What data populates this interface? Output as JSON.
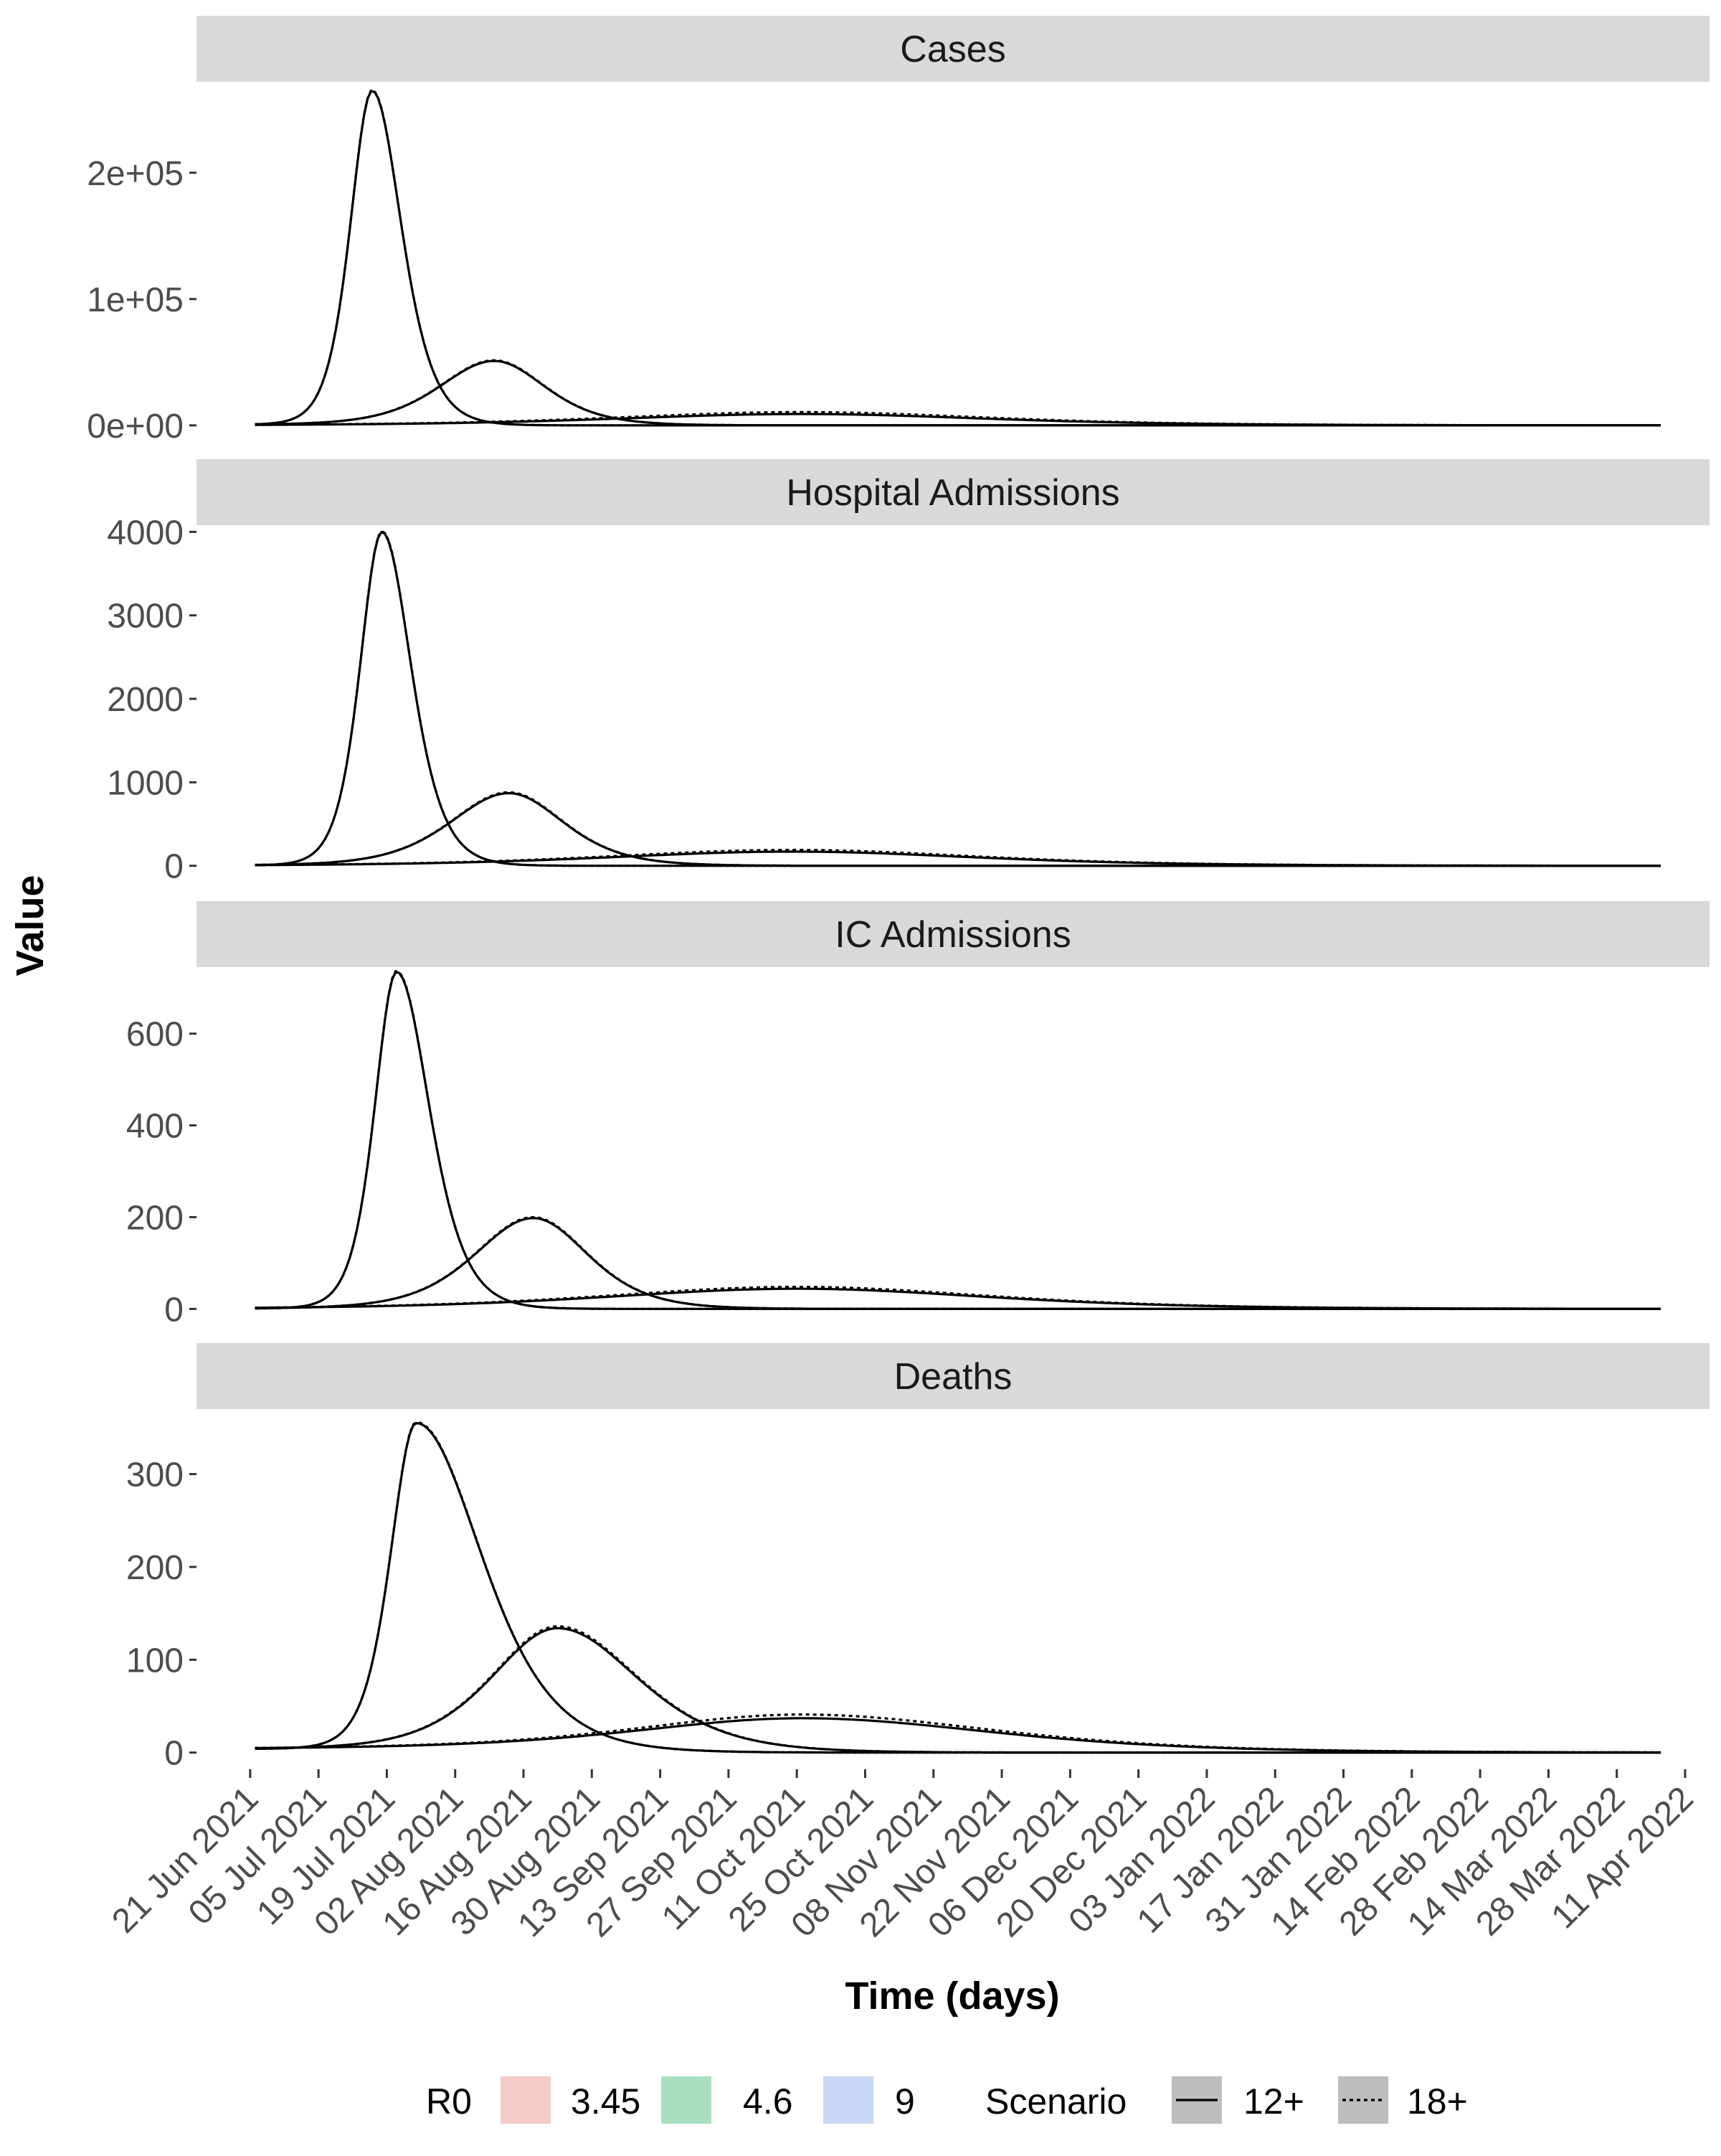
{
  "chart_data": {
    "type": "line",
    "xlabel": "Time (days)",
    "ylabel": "Value",
    "x_axis": {
      "type": "date",
      "range": [
        "2021-06-10",
        "2022-04-16"
      ],
      "ticks": [
        "2021-06-21",
        "2021-07-05",
        "2021-07-19",
        "2021-08-02",
        "2021-08-16",
        "2021-08-30",
        "2021-09-13",
        "2021-09-27",
        "2021-10-11",
        "2021-10-25",
        "2021-11-08",
        "2021-11-22",
        "2021-12-06",
        "2021-12-20",
        "2022-01-03",
        "2022-01-17",
        "2022-01-31",
        "2022-02-14",
        "2022-02-28",
        "2022-03-14",
        "2022-03-28",
        "2022-04-11"
      ],
      "tick_labels": [
        "21 Jun 2021",
        "05 Jul 2021",
        "19 Jul 2021",
        "02 Aug 2021",
        "16 Aug 2021",
        "30 Aug 2021",
        "13 Sep 2021",
        "27 Sep 2021",
        "11 Oct 2021",
        "25 Oct 2021",
        "08 Nov 2021",
        "22 Nov 2021",
        "06 Dec 2021",
        "20 Dec 2021",
        "03 Jan 2022",
        "17 Jan 2022",
        "31 Jan 2022",
        "14 Feb 2022",
        "28 Feb 2022",
        "14 Mar 2022",
        "28 Mar 2022",
        "11 Apr 2022"
      ]
    },
    "series_date_range": [
      "2021-06-22",
      "2022-04-06"
    ],
    "legend": {
      "position": "bottom",
      "groups": [
        {
          "title": "R0",
          "kind": "fill",
          "items": [
            {
              "label": "3.45",
              "color": "#f4cbc7"
            },
            {
              "label": "4.6",
              "color": "#a9dfbf"
            },
            {
              "label": "9",
              "color": "#c7d7f4"
            }
          ]
        },
        {
          "title": "Scenario",
          "kind": "linetype",
          "items": [
            {
              "label": "12+",
              "dash": "solid"
            },
            {
              "label": "18+",
              "dash": "dotted"
            }
          ]
        }
      ]
    },
    "panels": [
      {
        "strip": "Cases",
        "ylim": [
          -12000,
          272000
        ],
        "y_ticks": [
          0,
          100000,
          200000
        ],
        "y_tick_labels": [
          "0e+00",
          "1e+05",
          "2e+05"
        ],
        "series": [
          {
            "r0": "9",
            "scenario": "12+",
            "peak_date": "2021-07-16",
            "peak": 265000,
            "rise_days": 6,
            "fall_days": 8,
            "start": 500,
            "end": 0
          },
          {
            "r0": "9",
            "scenario": "18+",
            "peak_date": "2021-07-16",
            "peak": 265500,
            "rise_days": 6,
            "fall_days": 8,
            "start": 500,
            "end": 0
          },
          {
            "r0": "4.6",
            "scenario": "12+",
            "peak_date": "2021-08-10",
            "peak": 51000,
            "rise_days": 15,
            "fall_days": 14,
            "start": 500,
            "end": 0
          },
          {
            "r0": "4.6",
            "scenario": "18+",
            "peak_date": "2021-08-10",
            "peak": 51500,
            "rise_days": 15,
            "fall_days": 14,
            "start": 500,
            "end": 0
          },
          {
            "r0": "3.45",
            "scenario": "12+",
            "peak_date": "2021-10-12",
            "peak": 9000,
            "rise_days": 50,
            "fall_days": 50,
            "start": 0,
            "end": 0
          },
          {
            "r0": "3.45",
            "scenario": "18+",
            "peak_date": "2021-10-12",
            "peak": 10500,
            "rise_days": 50,
            "fall_days": 50,
            "start": 0,
            "end": 0
          }
        ]
      },
      {
        "strip": "Hospital Admissions",
        "ylim": [
          -200,
          4080
        ],
        "y_ticks": [
          0,
          1000,
          2000,
          3000,
          4000
        ],
        "y_tick_labels": [
          "0",
          "1000",
          "2000",
          "3000",
          "4000"
        ],
        "series": [
          {
            "r0": "9",
            "scenario": "12+",
            "peak_date": "2021-07-18",
            "peak": 4000,
            "rise_days": 6,
            "fall_days": 8,
            "start": 5,
            "end": 0
          },
          {
            "r0": "9",
            "scenario": "18+",
            "peak_date": "2021-07-18",
            "peak": 4010,
            "rise_days": 6,
            "fall_days": 8,
            "start": 5,
            "end": 0
          },
          {
            "r0": "4.6",
            "scenario": "12+",
            "peak_date": "2021-08-13",
            "peak": 870,
            "rise_days": 16,
            "fall_days": 15,
            "start": 5,
            "end": 0
          },
          {
            "r0": "4.6",
            "scenario": "18+",
            "peak_date": "2021-08-13",
            "peak": 880,
            "rise_days": 16,
            "fall_days": 15,
            "start": 5,
            "end": 0
          },
          {
            "r0": "3.45",
            "scenario": "12+",
            "peak_date": "2021-10-10",
            "peak": 170,
            "rise_days": 50,
            "fall_days": 50,
            "start": 0,
            "end": 0
          },
          {
            "r0": "3.45",
            "scenario": "18+",
            "peak_date": "2021-10-10",
            "peak": 190,
            "rise_days": 50,
            "fall_days": 50,
            "start": 0,
            "end": 0
          }
        ]
      },
      {
        "strip": "IC Admissions",
        "ylim": [
          -37,
          745
        ],
        "y_ticks": [
          0,
          200,
          400,
          600
        ],
        "y_tick_labels": [
          "0",
          "200",
          "400",
          "600"
        ],
        "series": [
          {
            "r0": "9",
            "scenario": "12+",
            "peak_date": "2021-07-21",
            "peak": 735,
            "rise_days": 6,
            "fall_days": 9,
            "start": 1,
            "end": 0
          },
          {
            "r0": "9",
            "scenario": "18+",
            "peak_date": "2021-07-21",
            "peak": 737,
            "rise_days": 6,
            "fall_days": 9,
            "start": 1,
            "end": 0
          },
          {
            "r0": "4.6",
            "scenario": "12+",
            "peak_date": "2021-08-18",
            "peak": 198,
            "rise_days": 16,
            "fall_days": 15,
            "start": 1,
            "end": 0
          },
          {
            "r0": "4.6",
            "scenario": "18+",
            "peak_date": "2021-08-18",
            "peak": 200,
            "rise_days": 16,
            "fall_days": 15,
            "start": 1,
            "end": 0
          },
          {
            "r0": "3.45",
            "scenario": "12+",
            "peak_date": "2021-10-11",
            "peak": 44,
            "rise_days": 52,
            "fall_days": 52,
            "start": 0,
            "end": 0
          },
          {
            "r0": "3.45",
            "scenario": "18+",
            "peak_date": "2021-10-11",
            "peak": 48,
            "rise_days": 52,
            "fall_days": 52,
            "start": 0,
            "end": 0
          }
        ]
      },
      {
        "strip": "Deaths",
        "ylim": [
          -18,
          370
        ],
        "y_ticks": [
          0,
          100,
          200,
          300
        ],
        "y_tick_labels": [
          "0",
          "100",
          "200",
          "300"
        ],
        "series": [
          {
            "r0": "9",
            "scenario": "12+",
            "peak_date": "2021-07-25",
            "peak": 355,
            "rise_days": 7,
            "fall_days": 18,
            "start": 4,
            "end": 0
          },
          {
            "r0": "9",
            "scenario": "18+",
            "peak_date": "2021-07-25",
            "peak": 356,
            "rise_days": 7,
            "fall_days": 18,
            "start": 4,
            "end": 0
          },
          {
            "r0": "4.6",
            "scenario": "12+",
            "peak_date": "2021-08-23",
            "peak": 134,
            "rise_days": 18,
            "fall_days": 22,
            "start": 4,
            "end": 0
          },
          {
            "r0": "4.6",
            "scenario": "18+",
            "peak_date": "2021-08-23",
            "peak": 136,
            "rise_days": 18,
            "fall_days": 22,
            "start": 4,
            "end": 0
          },
          {
            "r0": "3.45",
            "scenario": "12+",
            "peak_date": "2021-10-12",
            "peak": 37,
            "rise_days": 45,
            "fall_days": 52,
            "start": 4,
            "end": 0
          },
          {
            "r0": "3.45",
            "scenario": "18+",
            "peak_date": "2021-10-12",
            "peak": 41,
            "rise_days": 45,
            "fall_days": 52,
            "start": 4,
            "end": 0
          }
        ]
      }
    ]
  }
}
